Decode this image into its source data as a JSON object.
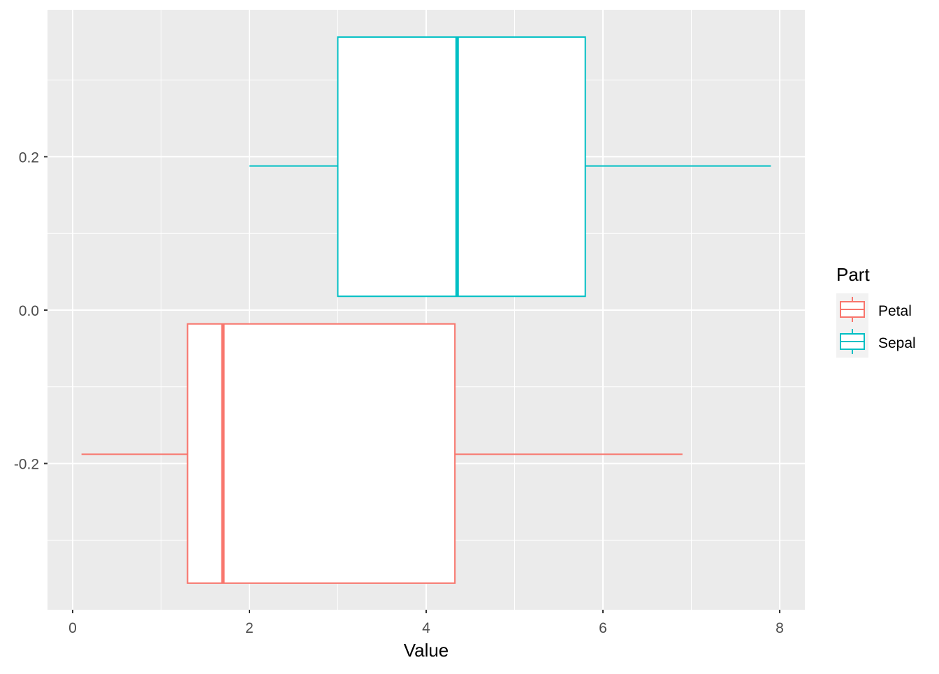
{
  "chart_data": {
    "type": "boxplot",
    "orientation": "horizontal",
    "title": "",
    "xlabel": "Value",
    "ylabel": "",
    "xlim": [
      -0.5,
      8.5
    ],
    "ylim": [
      -0.39,
      0.39
    ],
    "x_ticks": [
      0,
      2,
      4,
      6,
      8
    ],
    "x_tick_labels": [
      "0",
      "2",
      "4",
      "6",
      "8"
    ],
    "y_ticks": [
      -0.2,
      0.0,
      0.2
    ],
    "y_tick_labels": [
      "-0.2",
      "0.0",
      "0.2"
    ],
    "grid": true,
    "legend": {
      "title": "Part",
      "placement": "right",
      "entries": [
        "Petal",
        "Sepal"
      ]
    },
    "series": [
      {
        "name": "Petal",
        "color": "#F8766D",
        "min": 0.1,
        "q1": 1.3,
        "median": 1.7,
        "q3": 4.325,
        "max": 6.9,
        "ymin": -0.356,
        "ymax": -0.018,
        "y": -0.188
      },
      {
        "name": "Sepal",
        "color": "#00BFC4",
        "min": 2.0,
        "q1": 3.0,
        "median": 4.35,
        "q3": 5.8,
        "max": 7.9,
        "ymin": 0.018,
        "ymax": 0.356,
        "y": 0.188
      }
    ],
    "panel_background": "#EBEBEB"
  }
}
